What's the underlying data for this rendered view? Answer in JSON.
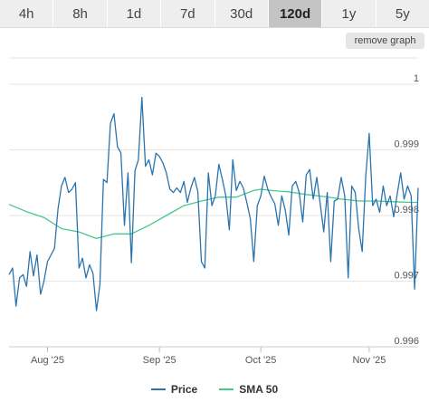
{
  "tabs": [
    {
      "label": "4h",
      "active": false
    },
    {
      "label": "8h",
      "active": false
    },
    {
      "label": "1d",
      "active": false
    },
    {
      "label": "7d",
      "active": false
    },
    {
      "label": "30d",
      "active": false
    },
    {
      "label": "120d",
      "active": true
    },
    {
      "label": "1y",
      "active": false
    },
    {
      "label": "5y",
      "active": false
    }
  ],
  "remove_graph_label": "remove graph",
  "chart_data": {
    "type": "line",
    "x_ticks": [
      "Aug '25",
      "Sep '25",
      "Oct '25",
      "Nov '25"
    ],
    "x_tick_days": [
      11,
      43,
      72,
      103
    ],
    "y_ticks": [
      0.996,
      0.997,
      0.998,
      0.999,
      1
    ],
    "ylim": [
      0.996,
      1.0004
    ],
    "xlim": [
      0,
      117
    ],
    "grid": true,
    "legend_position": "bottom",
    "series": [
      {
        "name": "Price",
        "color": "#2b74ad",
        "values": [
          [
            0,
            0.9971
          ],
          [
            1,
            0.9972
          ],
          [
            2,
            0.99662
          ],
          [
            3,
            0.99705
          ],
          [
            4,
            0.9971
          ],
          [
            5,
            0.99692
          ],
          [
            6,
            0.99745
          ],
          [
            7,
            0.99708
          ],
          [
            8,
            0.9974
          ],
          [
            9,
            0.9968
          ],
          [
            10,
            0.997
          ],
          [
            11,
            0.9973
          ],
          [
            12,
            0.9974
          ],
          [
            13,
            0.9975
          ],
          [
            14,
            0.9981
          ],
          [
            15,
            0.99845
          ],
          [
            16,
            0.99858
          ],
          [
            17,
            0.99835
          ],
          [
            18,
            0.9984
          ],
          [
            19,
            0.9985
          ],
          [
            20,
            0.9972
          ],
          [
            21,
            0.99735
          ],
          [
            22,
            0.99705
          ],
          [
            23,
            0.99725
          ],
          [
            24,
            0.99712
          ],
          [
            25,
            0.99655
          ],
          [
            26,
            0.99695
          ],
          [
            27,
            0.99855
          ],
          [
            28,
            0.9985
          ],
          [
            29,
            0.9994
          ],
          [
            30,
            0.99955
          ],
          [
            31,
            0.99905
          ],
          [
            32,
            0.99895
          ],
          [
            33,
            0.99785
          ],
          [
            34,
            0.99865
          ],
          [
            35,
            0.99728
          ],
          [
            36,
            0.99868
          ],
          [
            37,
            0.99885
          ],
          [
            38,
            0.9998
          ],
          [
            39,
            0.99875
          ],
          [
            40,
            0.99885
          ],
          [
            41,
            0.99862
          ],
          [
            42,
            0.99895
          ],
          [
            43,
            0.9989
          ],
          [
            44,
            0.9988
          ],
          [
            45,
            0.99865
          ],
          [
            46,
            0.9984
          ],
          [
            47,
            0.99835
          ],
          [
            48,
            0.99842
          ],
          [
            49,
            0.99835
          ],
          [
            50,
            0.99852
          ],
          [
            51,
            0.9982
          ],
          [
            52,
            0.99842
          ],
          [
            53,
            0.99858
          ],
          [
            54,
            0.99836
          ],
          [
            55,
            0.9973
          ],
          [
            56,
            0.9972
          ],
          [
            57,
            0.99865
          ],
          [
            58,
            0.99815
          ],
          [
            59,
            0.9983
          ],
          [
            60,
            0.99878
          ],
          [
            61,
            0.99855
          ],
          [
            62,
            0.9983
          ],
          [
            63,
            0.99778
          ],
          [
            64,
            0.99885
          ],
          [
            65,
            0.99838
          ],
          [
            66,
            0.99852
          ],
          [
            67,
            0.99842
          ],
          [
            68,
            0.9982
          ],
          [
            69,
            0.99795
          ],
          [
            70,
            0.9973
          ],
          [
            71,
            0.99815
          ],
          [
            72,
            0.9983
          ],
          [
            73,
            0.9986
          ],
          [
            74,
            0.9984
          ],
          [
            75,
            0.99828
          ],
          [
            76,
            0.99818
          ],
          [
            77,
            0.99785
          ],
          [
            78,
            0.9983
          ],
          [
            79,
            0.99808
          ],
          [
            80,
            0.9977
          ],
          [
            81,
            0.99845
          ],
          [
            82,
            0.99852
          ],
          [
            83,
            0.99835
          ],
          [
            84,
            0.9979
          ],
          [
            85,
            0.99862
          ],
          [
            86,
            0.9987
          ],
          [
            87,
            0.99825
          ],
          [
            88,
            0.99858
          ],
          [
            89,
            0.99818
          ],
          [
            90,
            0.99775
          ],
          [
            91,
            0.99835
          ],
          [
            92,
            0.9973
          ],
          [
            93,
            0.99822
          ],
          [
            94,
            0.99825
          ],
          [
            95,
            0.99858
          ],
          [
            96,
            0.9983
          ],
          [
            97,
            0.99705
          ],
          [
            98,
            0.99845
          ],
          [
            99,
            0.99835
          ],
          [
            100,
            0.9978
          ],
          [
            101,
            0.99745
          ],
          [
            102,
            0.9986
          ],
          [
            103,
            0.99925
          ],
          [
            104,
            0.99815
          ],
          [
            105,
            0.99825
          ],
          [
            106,
            0.99805
          ],
          [
            107,
            0.99845
          ],
          [
            108,
            0.99815
          ],
          [
            109,
            0.9983
          ],
          [
            110,
            0.99798
          ],
          [
            111,
            0.99832
          ],
          [
            112,
            0.99865
          ],
          [
            113,
            0.99825
          ],
          [
            114,
            0.99845
          ],
          [
            115,
            0.9983
          ],
          [
            116,
            0.99688
          ],
          [
            117,
            0.99842
          ]
        ]
      },
      {
        "name": "SMA 50",
        "color": "#46c98a",
        "values": [
          [
            0,
            0.99817
          ],
          [
            5,
            0.99806
          ],
          [
            10,
            0.99797
          ],
          [
            15,
            0.9978
          ],
          [
            20,
            0.99775
          ],
          [
            25,
            0.99765
          ],
          [
            30,
            0.99772
          ],
          [
            35,
            0.99772
          ],
          [
            40,
            0.99785
          ],
          [
            45,
            0.998
          ],
          [
            50,
            0.99815
          ],
          [
            55,
            0.99822
          ],
          [
            60,
            0.99828
          ],
          [
            65,
            0.99828
          ],
          [
            70,
            0.99838
          ],
          [
            72,
            0.9984
          ],
          [
            75,
            0.99838
          ],
          [
            80,
            0.99836
          ],
          [
            85,
            0.99832
          ],
          [
            90,
            0.99829
          ],
          [
            95,
            0.99825
          ],
          [
            100,
            0.99822
          ],
          [
            105,
            0.99822
          ],
          [
            110,
            0.99821
          ],
          [
            115,
            0.9982
          ],
          [
            117,
            0.9982
          ]
        ]
      }
    ]
  }
}
